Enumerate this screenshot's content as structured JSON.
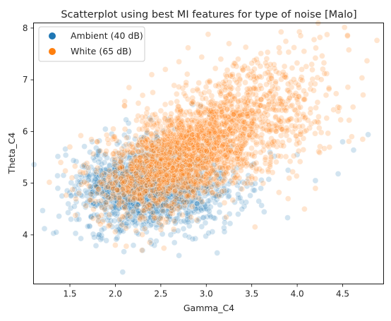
{
  "chart_data": {
    "type": "scatter",
    "title": "Scatterplot using best MI features for type of noise [Malo]",
    "xlabel": "Gamma_C4",
    "ylabel": "Theta_C4",
    "xlim": [
      1.1,
      4.95
    ],
    "ylim": [
      3.05,
      8.1
    ],
    "xticks": [
      1.5,
      2.0,
      2.5,
      3.0,
      3.5,
      4.0,
      4.5
    ],
    "yticks": [
      4,
      5,
      6,
      7,
      8
    ],
    "grid": false,
    "legend_position": "top-left",
    "point_alpha": 0.2,
    "series": [
      {
        "name": "Ambient (40 dB)",
        "color": "#1f77b4",
        "points": [
          [
            1.2,
            4.47
          ],
          [
            1.22,
            4.12
          ],
          [
            1.32,
            4.03
          ],
          [
            1.35,
            4.05
          ],
          [
            1.38,
            4.36
          ],
          [
            1.45,
            5.66
          ],
          [
            1.48,
            4.43
          ],
          [
            1.55,
            4.88
          ],
          [
            1.6,
            4.3
          ],
          [
            1.62,
            5.02
          ],
          [
            1.66,
            5.71
          ],
          [
            1.72,
            5.6
          ],
          [
            1.78,
            5.08
          ],
          [
            1.8,
            4.92
          ],
          [
            1.82,
            4.0
          ],
          [
            1.85,
            5.37
          ],
          [
            1.88,
            4.52
          ],
          [
            1.9,
            3.89
          ],
          [
            1.92,
            4.78
          ],
          [
            1.96,
            5.95
          ],
          [
            1.98,
            5.18
          ],
          [
            2.02,
            4.64
          ],
          [
            2.05,
            5.52
          ],
          [
            2.08,
            3.28
          ],
          [
            2.1,
            5.04
          ],
          [
            2.12,
            4.21
          ],
          [
            2.15,
            6.0
          ],
          [
            2.18,
            4.86
          ],
          [
            2.2,
            5.44
          ],
          [
            2.25,
            4.42
          ],
          [
            2.28,
            5.13
          ],
          [
            2.3,
            3.7
          ],
          [
            2.35,
            4.96
          ],
          [
            2.4,
            5.68
          ],
          [
            2.45,
            3.88
          ],
          [
            2.5,
            4.8
          ],
          [
            2.55,
            5.28
          ],
          [
            2.6,
            4.3
          ],
          [
            2.65,
            3.85
          ],
          [
            2.7,
            4.7
          ],
          [
            2.75,
            5.58
          ],
          [
            2.8,
            4.25
          ],
          [
            2.85,
            3.92
          ],
          [
            2.9,
            4.6
          ],
          [
            2.95,
            4.16
          ],
          [
            3.0,
            4.92
          ],
          [
            3.05,
            4.35
          ],
          [
            3.1,
            5.2
          ],
          [
            3.15,
            4.58
          ],
          [
            3.2,
            4.06
          ],
          [
            3.25,
            4.75
          ],
          [
            3.3,
            5.14
          ],
          [
            3.35,
            4.4
          ],
          [
            3.4,
            5.02
          ],
          [
            3.5,
            5.35
          ],
          [
            3.6,
            4.9
          ],
          [
            3.7,
            5.6
          ],
          [
            3.75,
            5.52
          ],
          [
            3.9,
            5.25
          ],
          [
            4.0,
            5.55
          ],
          [
            4.2,
            5.05
          ],
          [
            4.45,
            5.18
          ],
          [
            4.5,
            5.8
          ],
          [
            4.62,
            5.64
          ],
          [
            4.78,
            5.94
          ],
          [
            2.7,
            3.6
          ],
          [
            2.4,
            6.22
          ],
          [
            1.55,
            4.55
          ],
          [
            2.85,
            6.52
          ],
          [
            3.12,
            3.65
          ]
        ]
      },
      {
        "name": "White (65 dB)",
        "color": "#ff7f0e",
        "points": [
          [
            1.7,
            5.3
          ],
          [
            1.8,
            5.8
          ],
          [
            1.85,
            4.98
          ],
          [
            1.9,
            5.62
          ],
          [
            1.95,
            4.7
          ],
          [
            2.0,
            3.8
          ],
          [
            2.05,
            5.3
          ],
          [
            2.1,
            6.5
          ],
          [
            2.12,
            3.78
          ],
          [
            2.15,
            6.85
          ],
          [
            2.2,
            5.42
          ],
          [
            2.25,
            6.3
          ],
          [
            2.3,
            6.7
          ],
          [
            2.35,
            4.55
          ],
          [
            2.4,
            7.1
          ],
          [
            2.45,
            5.92
          ],
          [
            2.5,
            6.4
          ],
          [
            2.55,
            7.2
          ],
          [
            2.6,
            5.38
          ],
          [
            2.65,
            6.2
          ],
          [
            2.7,
            7.35
          ],
          [
            2.72,
            4.82
          ],
          [
            2.75,
            6.02
          ],
          [
            2.8,
            7.62
          ],
          [
            2.85,
            5.52
          ],
          [
            2.9,
            6.82
          ],
          [
            2.95,
            7.44
          ],
          [
            3.0,
            5.82
          ],
          [
            3.02,
            7.88
          ],
          [
            3.05,
            6.52
          ],
          [
            3.1,
            7.22
          ],
          [
            3.15,
            5.62
          ],
          [
            3.2,
            6.92
          ],
          [
            3.25,
            7.7
          ],
          [
            3.3,
            6.22
          ],
          [
            3.35,
            7.4
          ],
          [
            3.4,
            5.72
          ],
          [
            3.45,
            6.82
          ],
          [
            3.5,
            7.32
          ],
          [
            3.55,
            5.92
          ],
          [
            3.6,
            6.62
          ],
          [
            3.65,
            7.12
          ],
          [
            3.7,
            5.32
          ],
          [
            3.75,
            6.42
          ],
          [
            3.8,
            7.62
          ],
          [
            3.85,
            5.72
          ],
          [
            3.9,
            6.92
          ],
          [
            3.95,
            5.22
          ],
          [
            4.0,
            6.62
          ],
          [
            4.05,
            7.2
          ],
          [
            4.08,
            4.5
          ],
          [
            4.1,
            6.02
          ],
          [
            4.15,
            6.92
          ],
          [
            4.2,
            7.42
          ],
          [
            4.25,
            7.82
          ],
          [
            4.3,
            7.12
          ],
          [
            4.35,
            6.82
          ],
          [
            4.4,
            6.42
          ],
          [
            4.6,
            5.9
          ],
          [
            4.72,
            5.85
          ],
          [
            1.5,
            5.7
          ],
          [
            1.4,
            5.4
          ],
          [
            2.05,
            4.3
          ],
          [
            2.5,
            4.1
          ],
          [
            3.8,
            4.82
          ],
          [
            3.2,
            4.62
          ],
          [
            3.9,
            4.7
          ],
          [
            1.62,
            5.92
          ],
          [
            4.2,
            4.9
          ],
          [
            3.6,
            6.1
          ]
        ]
      }
    ],
    "dense_clusters": [
      {
        "series": 0,
        "cx": 2.25,
        "cy": 5.0,
        "sx": 0.33,
        "sy": 0.4,
        "rho": 0.15,
        "n": 1200,
        "seed": 11
      },
      {
        "series": 0,
        "cx": 2.6,
        "cy": 4.75,
        "sx": 0.38,
        "sy": 0.33,
        "rho": 0.1,
        "n": 500,
        "seed": 23
      },
      {
        "series": 1,
        "cx": 2.55,
        "cy": 5.35,
        "sx": 0.38,
        "sy": 0.48,
        "rho": 0.4,
        "n": 1300,
        "seed": 37
      },
      {
        "series": 1,
        "cx": 3.0,
        "cy": 5.85,
        "sx": 0.35,
        "sy": 0.55,
        "rho": 0.45,
        "n": 900,
        "seed": 41
      },
      {
        "series": 1,
        "cx": 3.6,
        "cy": 6.3,
        "sx": 0.42,
        "sy": 0.65,
        "rho": 0.3,
        "n": 500,
        "seed": 53
      }
    ]
  }
}
